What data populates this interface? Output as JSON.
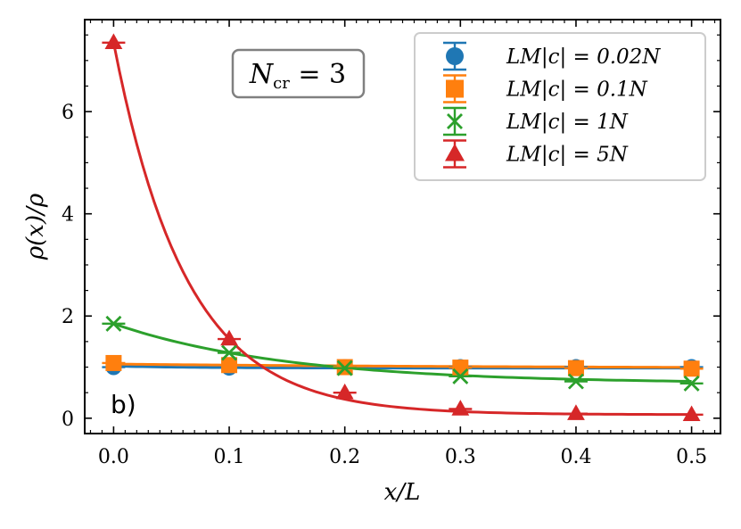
{
  "chart_data": {
    "type": "line",
    "xlabel": "x/L",
    "ylabel": "ρ(x)/ρ",
    "xlim": [
      -0.025,
      0.525
    ],
    "ylim": [
      -0.3,
      7.8
    ],
    "xticks": [
      0.0,
      0.1,
      0.2,
      0.3,
      0.4,
      0.5
    ],
    "xtick_labels": [
      "0.0",
      "0.1",
      "0.2",
      "0.3",
      "0.4",
      "0.5"
    ],
    "yticks": [
      0,
      2,
      4,
      6
    ],
    "ytick_labels": [
      "0",
      "2",
      "4",
      "6"
    ],
    "grid": false,
    "legend_position": "top-right",
    "annotation": "N_cr = 3",
    "annotation_main": "N",
    "annotation_sub": "cr",
    "annotation_rest": " = 3",
    "panel_label": "b)",
    "series": [
      {
        "name": "LM|c| = 0.02N",
        "color": "#1f77b4",
        "marker": "circle",
        "x": [
          0.0,
          0.1,
          0.2,
          0.3,
          0.4,
          0.5
        ],
        "y": [
          1.0,
          0.99,
          1.0,
          1.0,
          1.0,
          1.0
        ],
        "fit": [
          1.02,
          0.98
        ]
      },
      {
        "name": "LM|c| = 0.1N",
        "color": "#ff7f0e",
        "marker": "square",
        "x": [
          0.0,
          0.1,
          0.2,
          0.3,
          0.4,
          0.5
        ],
        "y": [
          1.08,
          1.04,
          1.0,
          0.99,
          0.98,
          0.97
        ],
        "fit": [
          1.06,
          0.97
        ]
      },
      {
        "name": "LM|c| = 1N",
        "color": "#2ca02c",
        "marker": "x",
        "x": [
          0.0,
          0.1,
          0.2,
          0.3,
          0.4,
          0.5
        ],
        "y": [
          1.85,
          1.28,
          0.98,
          0.82,
          0.72,
          0.68
        ],
        "fit": [
          1.85,
          0.68
        ]
      },
      {
        "name": "LM|c| = 5N",
        "color": "#d62728",
        "marker": "triangle",
        "x": [
          0.0,
          0.1,
          0.2,
          0.3,
          0.4,
          0.5
        ],
        "y": [
          7.35,
          1.55,
          0.5,
          0.18,
          0.09,
          0.07
        ],
        "fit": [
          7.35,
          0.07
        ]
      }
    ]
  }
}
